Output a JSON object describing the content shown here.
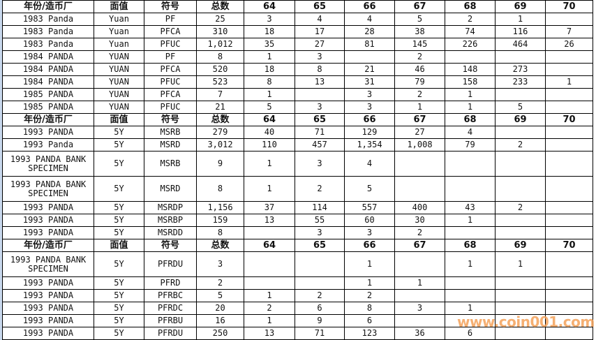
{
  "header": [
    "年份/造币厂",
    "面值",
    "符号",
    "总数",
    "64",
    "65",
    "66",
    "67",
    "68",
    "69",
    "70"
  ],
  "sections": [
    {
      "rows": [
        [
          "1983 Panda",
          "Yuan",
          "PF",
          "25",
          "3",
          "4",
          "4",
          "5",
          "2",
          "1",
          ""
        ],
        [
          "1983 Panda",
          "Yuan",
          "PFCA",
          "310",
          "18",
          "17",
          "28",
          "38",
          "74",
          "116",
          "7"
        ],
        [
          "1983 Panda",
          "Yuan",
          "PFUC",
          "1,012",
          "35",
          "27",
          "81",
          "145",
          "226",
          "464",
          "26"
        ],
        [
          "1984 PANDA",
          "YUAN",
          "PF",
          "8",
          "1",
          "3",
          "",
          "2",
          "",
          "",
          ""
        ],
        [
          "1984 PANDA",
          "YUAN",
          "PFCA",
          "520",
          "18",
          "8",
          "21",
          "46",
          "148",
          "273",
          ""
        ],
        [
          "1984 PANDA",
          "YUAN",
          "PFUC",
          "523",
          "8",
          "13",
          "31",
          "79",
          "158",
          "233",
          "1"
        ],
        [
          "1985 PANDA",
          "YUAN",
          "PFCA",
          "7",
          "1",
          "",
          "3",
          "2",
          "1",
          "",
          ""
        ],
        [
          "1985 PANDA",
          "YUAN",
          "PFUC",
          "21",
          "5",
          "3",
          "3",
          "1",
          "1",
          "5",
          ""
        ]
      ]
    },
    {
      "rows": [
        [
          "1993 PANDA",
          "5Y",
          "MSRB",
          "279",
          "40",
          "71",
          "129",
          "27",
          "4",
          "",
          ""
        ],
        [
          "1993 Panda",
          "5Y",
          "MSRD",
          "3,012",
          "110",
          "457",
          "1,354",
          "1,008",
          "79",
          "2",
          ""
        ],
        [
          "1993 PANDA BANK SPECIMEN",
          "5Y",
          "MSRB",
          "9",
          "1",
          "3",
          "4",
          "",
          "",
          "",
          ""
        ],
        [
          "1993 PANDA BANK SPECIMEN",
          "5Y",
          "MSRD",
          "8",
          "1",
          "2",
          "5",
          "",
          "",
          "",
          ""
        ],
        [
          "1993 PANDA",
          "5Y",
          "MSRDP",
          "1,156",
          "37",
          "114",
          "557",
          "400",
          "43",
          "2",
          ""
        ],
        [
          "1993 PANDA",
          "5Y",
          "MSRBP",
          "159",
          "13",
          "55",
          "60",
          "30",
          "1",
          "",
          ""
        ],
        [
          "1993 PANDA",
          "5Y",
          "MSRDD",
          "8",
          "",
          "3",
          "3",
          "2",
          "",
          "",
          ""
        ]
      ]
    },
    {
      "rows": [
        [
          "1993 PANDA BANK SPECIMEN",
          "5Y",
          "PFRDU",
          "3",
          "",
          "",
          "1",
          "",
          "1",
          "1",
          ""
        ],
        [
          "1993 PANDA",
          "5Y",
          "PFRD",
          "2",
          "",
          "",
          "1",
          "1",
          "",
          "",
          ""
        ],
        [
          "1993 PANDA",
          "5Y",
          "PFRBC",
          "5",
          "1",
          "2",
          "2",
          "",
          "",
          "",
          ""
        ],
        [
          "1993 PANDA",
          "5Y",
          "PFRDC",
          "20",
          "2",
          "6",
          "8",
          "3",
          "1",
          "",
          ""
        ],
        [
          "1993 PANDA",
          "5Y",
          "PFRBU",
          "16",
          "1",
          "9",
          "6",
          "",
          "",
          "",
          ""
        ],
        [
          "1993 PANDA",
          "5Y",
          "PFRDU",
          "250",
          "13",
          "71",
          "123",
          "36",
          "6",
          "",
          ""
        ]
      ]
    }
  ],
  "watermark": "www.coin001.com",
  "colors": {
    "watermark": "#f4a25a",
    "border": "#000000"
  }
}
